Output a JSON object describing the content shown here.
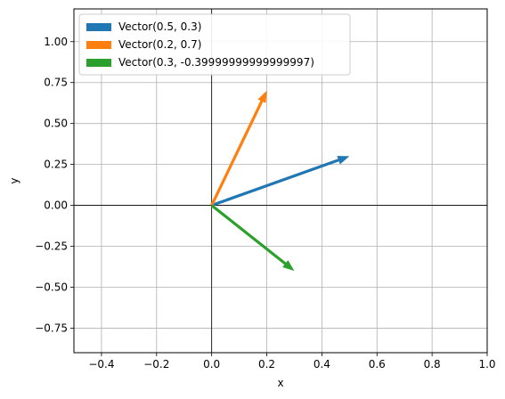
{
  "chart_data": {
    "type": "vector",
    "xlabel": "x",
    "ylabel": "y",
    "xlim": [
      -0.5,
      1.0
    ],
    "ylim": [
      -0.9,
      1.2
    ],
    "xticks": [
      -0.4,
      -0.2,
      0.0,
      0.2,
      0.4,
      0.6,
      0.8,
      1.0
    ],
    "xtick_labels": [
      "−0.4",
      "−0.2",
      "0.0",
      "0.2",
      "0.4",
      "0.6",
      "0.8",
      "1.0"
    ],
    "yticks": [
      -0.75,
      -0.5,
      -0.25,
      0.0,
      0.25,
      0.5,
      0.75,
      1.0
    ],
    "ytick_labels": [
      "−0.75",
      "−0.50",
      "−0.25",
      "0.00",
      "0.25",
      "0.50",
      "0.75",
      "1.00"
    ],
    "grid": true,
    "legend_position": "top-left",
    "series": [
      {
        "name": "Vector(0.5, 0.3)",
        "x0": 0,
        "y0": 0,
        "dx": 0.5,
        "dy": 0.3,
        "color": "#1f77b4"
      },
      {
        "name": "Vector(0.2, 0.7)",
        "x0": 0,
        "y0": 0,
        "dx": 0.2,
        "dy": 0.7,
        "color": "#ff7f0e"
      },
      {
        "name": "Vector(0.3, -0.39999999999999997)",
        "x0": 0,
        "y0": 0,
        "dx": 0.3,
        "dy": -0.4,
        "color": "#2ca02c"
      }
    ]
  }
}
